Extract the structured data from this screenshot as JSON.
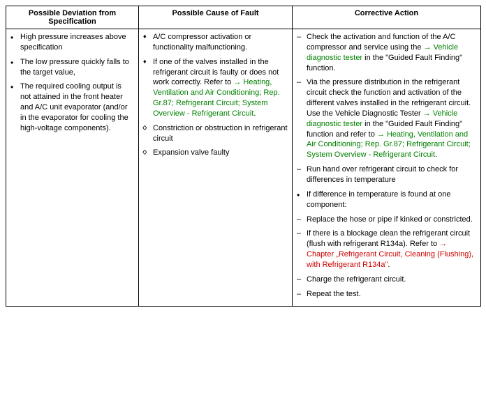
{
  "table": {
    "headers": {
      "col1": "Possible Deviation from Specification",
      "col2": "Possible Cause of Fault",
      "col3": "Corrective Action"
    },
    "col1": {
      "r1": "High pressure increases above specification",
      "r2": "The low pressure quickly falls to the target value,",
      "r3": "The required cooling output is not attained in the front heater and A/C unit evaporator (and/or in the evaporator for cooling the high-voltage components)."
    },
    "col2": {
      "r1": "A/C compressor activation or functionality malfunctioning.",
      "r2a": "If one of the valves installed in the refrigerant circuit is faulty or does not work correctly. Refer to ",
      "r2link": "→ Heating, Ventilation and Air Conditioning; Rep. Gr.87; Refrigerant Circuit; System Overview - Refrigerant Circuit",
      "r2b": ".",
      "r3": "Constriction or obstruction in refrigerant circuit",
      "r4": "Expansion valve faulty"
    },
    "col3": {
      "r1a": "Check the activation and function of the A/C compressor and service using the ",
      "r1link": "→ Vehicle diagnostic tester",
      "r1b": " in the \"Guided Fault Finding\" function.",
      "r2a": "Via the pressure distribution in the refrigerant circuit check the function and activation of the different valves installed in the refrigerant circuit. Use the Vehicle Diagnostic Tester ",
      "r2link1": "→ Vehicle diagnostic tester",
      "r2b": " in the \"Guided Fault Finding\" function and refer to ",
      "r2link2": "→ Heating, Ventilation and Air Conditioning; Rep. Gr.87; Refrigerant Circuit; System Overview - Refrigerant Circuit",
      "r2c": ".",
      "r3": "Run hand over refrigerant circuit to check for differences in temperature",
      "r4": "If difference in temperature is found at one component:",
      "r5": "Replace the hose or pipe if kinked or constricted.",
      "r6a": "If there is a blockage clean the refrigerant circuit (flush with refrigerant R134a). Refer to ",
      "r6link": "→ Chapter „Refrigerant Circuit, Cleaning (Flushing), with Refrigerant R134a\"",
      "r6b": ".",
      "r7": "Charge the refrigerant circuit.",
      "r8": "Repeat the test."
    }
  }
}
